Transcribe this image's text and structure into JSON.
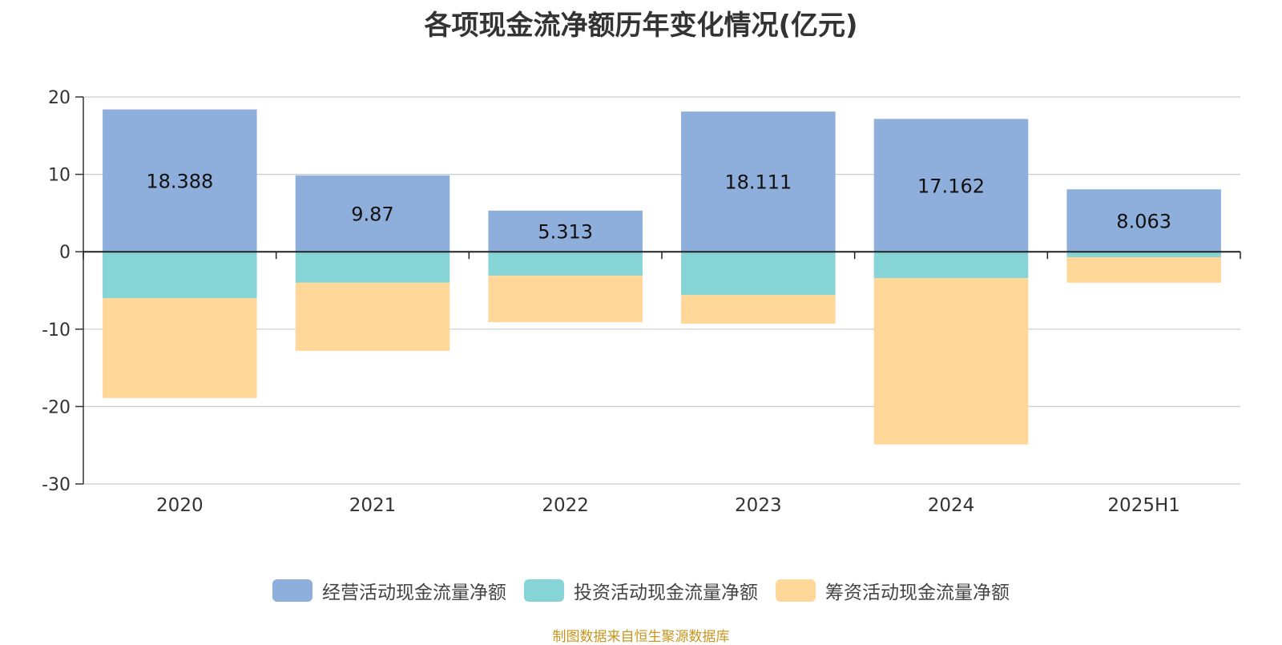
{
  "chart_data": {
    "type": "bar",
    "stacked": true,
    "title": "各项现金流净额历年变化情况(亿元)",
    "categories": [
      "2020",
      "2021",
      "2022",
      "2023",
      "2024",
      "2025H1"
    ],
    "series": [
      {
        "name": "经营活动现金流量净额",
        "color": "#8eaedb",
        "values": [
          18.388,
          9.87,
          5.313,
          18.111,
          17.162,
          8.063
        ],
        "labels": [
          "18.388",
          "9.87",
          "5.313",
          "18.111",
          "17.162",
          "8.063"
        ]
      },
      {
        "name": "投资活动现金流量净额",
        "color": "#86d4d6",
        "values": [
          -6.0,
          -4.0,
          -3.1,
          -5.6,
          -3.4,
          -0.7
        ]
      },
      {
        "name": "筹资活动现金流量净额",
        "color": "#ffd899",
        "values": [
          -12.9,
          -8.8,
          -6.0,
          -3.7,
          -21.5,
          -3.3
        ]
      }
    ],
    "ylim": [
      -30,
      20
    ],
    "yticks": [
      20,
      10,
      0,
      -10,
      -20,
      -30
    ],
    "ytick_labels": [
      "20",
      "10",
      "0",
      "-10",
      "-20",
      "-30"
    ],
    "xlabel": "",
    "ylabel": "",
    "grid": true,
    "legend_position": "bottom"
  },
  "source": "制图数据来自恒生聚源数据库"
}
